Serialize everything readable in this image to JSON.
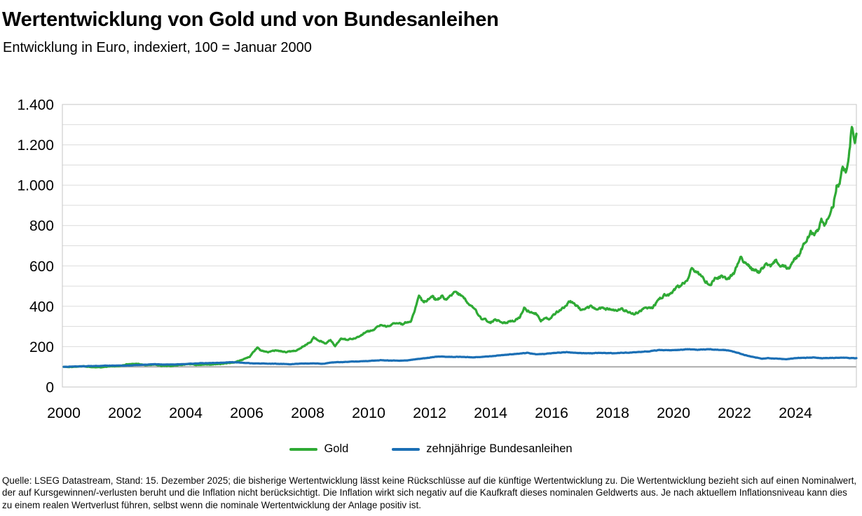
{
  "header": {
    "title": "Wertentwicklung von Gold und von Bundesanleihen",
    "subtitle": "Entwicklung in Euro, indexiert, 100 = Januar 2000"
  },
  "legend": {
    "items": [
      {
        "label": "Gold",
        "color": "#2faa35"
      },
      {
        "label": "zehnjährige Bundesanleihen",
        "color": "#1b6fb5"
      }
    ]
  },
  "footer": {
    "source_note": "Quelle: LSEG Datastream, Stand: 15. Dezember 2025; die bisherige Wertentwicklung lässt keine Rückschlüsse auf die künftige Wertentwicklung zu. Die Wertentwicklung bezieht sich auf einen Nominalwert, der auf Kursgewinnen/-verlusten beruht und die Inflation nicht berücksichtigt. Die Inflation wirkt sich negativ auf die Kaufkraft dieses nominalen Geldwerts aus. Je nach aktuellem Inflationsniveau kann dies zu einem realen Wertverlust führen, selbst wenn die nominale Wertentwicklung der Anlage positiv ist."
  },
  "chart_data": {
    "type": "line",
    "title": "Wertentwicklung von Gold und von Bundesanleihen",
    "subtitle": "Entwicklung in Euro, indexiert, 100 = Januar 2000",
    "xlabel": "",
    "ylabel": "",
    "xlim": [
      2000,
      2026
    ],
    "ylim": [
      0,
      1400
    ],
    "grid": "horizontal",
    "grid_step": 100,
    "reference_line": 100,
    "legend_position": "bottom",
    "x_ticks": [
      2000,
      2002,
      2004,
      2006,
      2008,
      2010,
      2012,
      2014,
      2016,
      2018,
      2020,
      2022,
      2024
    ],
    "y_ticks": [
      0,
      200,
      400,
      600,
      800,
      1000,
      1200,
      1400
    ],
    "y_tick_labels": [
      "0",
      "200",
      "400",
      "600",
      "800",
      "1.000",
      "1.200",
      "1.400"
    ],
    "series": [
      {
        "name": "Gold",
        "color": "#2faa35",
        "points": [
          [
            2000.0,
            100
          ],
          [
            2000.3,
            99
          ],
          [
            2000.6,
            103
          ],
          [
            2000.9,
            99
          ],
          [
            2001.2,
            97
          ],
          [
            2001.5,
            102
          ],
          [
            2001.8,
            104
          ],
          [
            2002.1,
            112
          ],
          [
            2002.4,
            116
          ],
          [
            2002.7,
            108
          ],
          [
            2003.0,
            112
          ],
          [
            2003.2,
            105
          ],
          [
            2003.5,
            104
          ],
          [
            2003.9,
            110
          ],
          [
            2004.1,
            114
          ],
          [
            2004.4,
            109
          ],
          [
            2004.7,
            112
          ],
          [
            2005.0,
            113
          ],
          [
            2005.3,
            116
          ],
          [
            2005.6,
            122
          ],
          [
            2005.9,
            138
          ],
          [
            2006.1,
            150
          ],
          [
            2006.35,
            196
          ],
          [
            2006.5,
            178
          ],
          [
            2006.7,
            172
          ],
          [
            2006.9,
            180
          ],
          [
            2007.1,
            178
          ],
          [
            2007.3,
            173
          ],
          [
            2007.6,
            180
          ],
          [
            2007.9,
            205
          ],
          [
            2008.1,
            225
          ],
          [
            2008.2,
            245
          ],
          [
            2008.4,
            230
          ],
          [
            2008.6,
            215
          ],
          [
            2008.75,
            235
          ],
          [
            2008.9,
            205
          ],
          [
            2009.1,
            240
          ],
          [
            2009.3,
            235
          ],
          [
            2009.6,
            245
          ],
          [
            2009.9,
            270
          ],
          [
            2010.1,
            280
          ],
          [
            2010.4,
            305
          ],
          [
            2010.6,
            300
          ],
          [
            2010.9,
            320
          ],
          [
            2011.1,
            310
          ],
          [
            2011.4,
            330
          ],
          [
            2011.65,
            450
          ],
          [
            2011.8,
            420
          ],
          [
            2011.95,
            430
          ],
          [
            2012.1,
            445
          ],
          [
            2012.25,
            430
          ],
          [
            2012.4,
            450
          ],
          [
            2012.55,
            435
          ],
          [
            2012.7,
            455
          ],
          [
            2012.8,
            470
          ],
          [
            2012.95,
            460
          ],
          [
            2013.1,
            450
          ],
          [
            2013.25,
            415
          ],
          [
            2013.45,
            395
          ],
          [
            2013.55,
            370
          ],
          [
            2013.7,
            340
          ],
          [
            2013.85,
            335
          ],
          [
            2014.0,
            320
          ],
          [
            2014.15,
            335
          ],
          [
            2014.3,
            325
          ],
          [
            2014.5,
            318
          ],
          [
            2014.65,
            325
          ],
          [
            2014.8,
            330
          ],
          [
            2014.95,
            345
          ],
          [
            2015.1,
            390
          ],
          [
            2015.3,
            370
          ],
          [
            2015.5,
            360
          ],
          [
            2015.65,
            330
          ],
          [
            2015.8,
            340
          ],
          [
            2015.95,
            335
          ],
          [
            2016.15,
            370
          ],
          [
            2016.4,
            395
          ],
          [
            2016.6,
            425
          ],
          [
            2016.8,
            405
          ],
          [
            2016.95,
            385
          ],
          [
            2017.1,
            390
          ],
          [
            2017.3,
            400
          ],
          [
            2017.5,
            385
          ],
          [
            2017.7,
            390
          ],
          [
            2017.9,
            385
          ],
          [
            2018.1,
            380
          ],
          [
            2018.3,
            385
          ],
          [
            2018.55,
            370
          ],
          [
            2018.7,
            365
          ],
          [
            2018.9,
            375
          ],
          [
            2019.1,
            395
          ],
          [
            2019.3,
            390
          ],
          [
            2019.5,
            430
          ],
          [
            2019.7,
            455
          ],
          [
            2019.9,
            460
          ],
          [
            2020.1,
            490
          ],
          [
            2020.3,
            510
          ],
          [
            2020.45,
            530
          ],
          [
            2020.6,
            590
          ],
          [
            2020.75,
            570
          ],
          [
            2020.9,
            555
          ],
          [
            2021.05,
            525
          ],
          [
            2021.2,
            505
          ],
          [
            2021.4,
            540
          ],
          [
            2021.6,
            545
          ],
          [
            2021.75,
            530
          ],
          [
            2021.9,
            550
          ],
          [
            2022.0,
            565
          ],
          [
            2022.2,
            655
          ],
          [
            2022.35,
            610
          ],
          [
            2022.5,
            595
          ],
          [
            2022.65,
            580
          ],
          [
            2022.8,
            570
          ],
          [
            2022.95,
            595
          ],
          [
            2023.05,
            615
          ],
          [
            2023.2,
            600
          ],
          [
            2023.35,
            630
          ],
          [
            2023.5,
            605
          ],
          [
            2023.65,
            595
          ],
          [
            2023.8,
            585
          ],
          [
            2023.95,
            635
          ],
          [
            2024.1,
            650
          ],
          [
            2024.25,
            695
          ],
          [
            2024.35,
            720
          ],
          [
            2024.5,
            765
          ],
          [
            2024.6,
            755
          ],
          [
            2024.75,
            775
          ],
          [
            2024.85,
            820
          ],
          [
            2024.95,
            800
          ],
          [
            2025.05,
            835
          ],
          [
            2025.15,
            880
          ],
          [
            2025.25,
            905
          ],
          [
            2025.35,
            1000
          ],
          [
            2025.45,
            1010
          ],
          [
            2025.55,
            1080
          ],
          [
            2025.65,
            1060
          ],
          [
            2025.75,
            1130
          ],
          [
            2025.85,
            1290
          ],
          [
            2025.9,
            1260
          ],
          [
            2025.95,
            1230
          ],
          [
            2026.0,
            1255
          ]
        ]
      },
      {
        "name": "zehnjährige Bundesanleihen",
        "color": "#1b6fb5",
        "points": [
          [
            2000.0,
            100
          ],
          [
            2000.5,
            102
          ],
          [
            2001.0,
            104
          ],
          [
            2001.5,
            106
          ],
          [
            2002.0,
            106
          ],
          [
            2002.5,
            109
          ],
          [
            2003.0,
            113
          ],
          [
            2003.3,
            111
          ],
          [
            2003.7,
            112
          ],
          [
            2004.0,
            114
          ],
          [
            2004.5,
            118
          ],
          [
            2005.0,
            119
          ],
          [
            2005.5,
            123
          ],
          [
            2005.8,
            121
          ],
          [
            2006.2,
            117
          ],
          [
            2006.6,
            116
          ],
          [
            2007.0,
            115
          ],
          [
            2007.4,
            113
          ],
          [
            2007.8,
            116
          ],
          [
            2008.2,
            117
          ],
          [
            2008.5,
            115
          ],
          [
            2008.8,
            122
          ],
          [
            2009.2,
            124
          ],
          [
            2009.6,
            126
          ],
          [
            2010.0,
            129
          ],
          [
            2010.4,
            133
          ],
          [
            2010.7,
            131
          ],
          [
            2011.0,
            130
          ],
          [
            2011.3,
            133
          ],
          [
            2011.7,
            140
          ],
          [
            2012.0,
            146
          ],
          [
            2012.3,
            151
          ],
          [
            2012.6,
            149
          ],
          [
            2013.0,
            150
          ],
          [
            2013.4,
            147
          ],
          [
            2013.8,
            150
          ],
          [
            2014.2,
            155
          ],
          [
            2014.6,
            161
          ],
          [
            2015.0,
            166
          ],
          [
            2015.2,
            169
          ],
          [
            2015.5,
            162
          ],
          [
            2015.8,
            164
          ],
          [
            2016.2,
            170
          ],
          [
            2016.5,
            173
          ],
          [
            2016.8,
            169
          ],
          [
            2017.2,
            167
          ],
          [
            2017.6,
            169
          ],
          [
            2018.0,
            168
          ],
          [
            2018.4,
            170
          ],
          [
            2018.8,
            172
          ],
          [
            2019.2,
            177
          ],
          [
            2019.6,
            184
          ],
          [
            2019.9,
            182
          ],
          [
            2020.2,
            184
          ],
          [
            2020.5,
            187
          ],
          [
            2020.8,
            185
          ],
          [
            2021.1,
            187
          ],
          [
            2021.4,
            185
          ],
          [
            2021.7,
            183
          ],
          [
            2021.9,
            178
          ],
          [
            2022.1,
            170
          ],
          [
            2022.3,
            160
          ],
          [
            2022.5,
            152
          ],
          [
            2022.7,
            146
          ],
          [
            2022.9,
            140
          ],
          [
            2023.1,
            143
          ],
          [
            2023.4,
            140
          ],
          [
            2023.7,
            138
          ],
          [
            2024.0,
            143
          ],
          [
            2024.3,
            145
          ],
          [
            2024.6,
            146
          ],
          [
            2024.9,
            143
          ],
          [
            2025.2,
            144
          ],
          [
            2025.5,
            146
          ],
          [
            2025.8,
            143
          ],
          [
            2026.0,
            143
          ]
        ]
      }
    ]
  },
  "style": {
    "grid_color": "#dcdcdc",
    "border_color": "#c6c6c6",
    "reference_line_color": "#ababab"
  }
}
